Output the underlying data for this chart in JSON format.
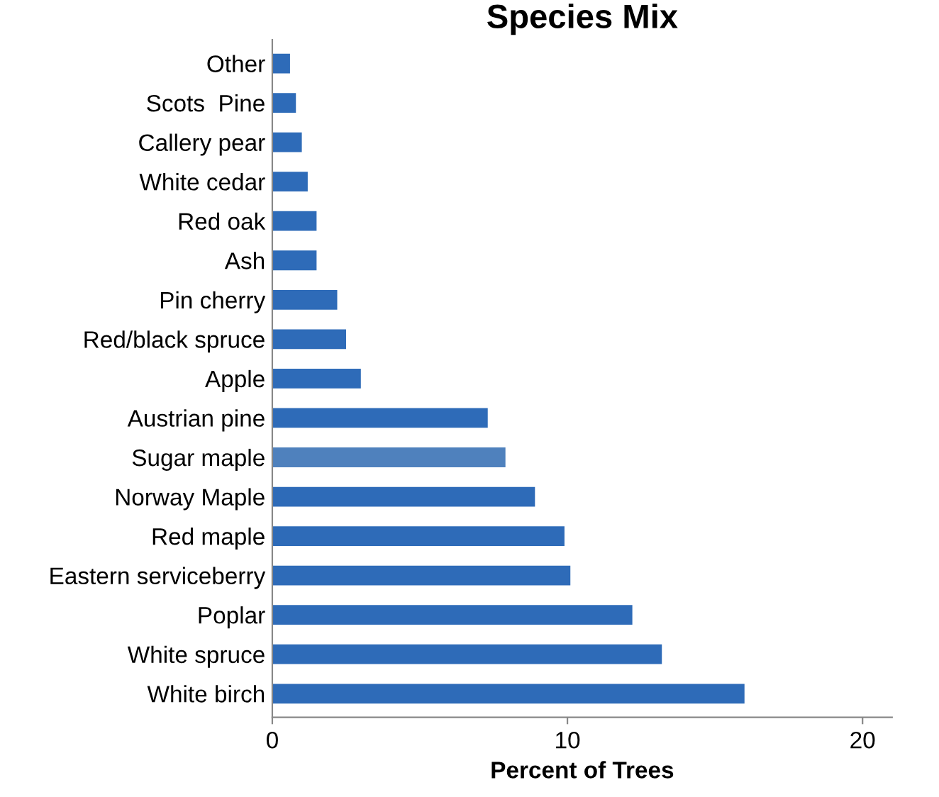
{
  "chart_data": {
    "type": "bar",
    "orientation": "horizontal",
    "title": "Species Mix",
    "xlabel": "Percent of Trees",
    "categories": [
      "Other",
      "Scots  Pine",
      "Callery pear",
      "White cedar",
      "Red oak",
      "Ash",
      "Pin cherry",
      "Red/black spruce",
      "Apple",
      "Austrian pine",
      "Sugar maple",
      "Norway Maple",
      "Red maple",
      "Eastern serviceberry",
      "Poplar",
      "White spruce",
      "White birch"
    ],
    "values": [
      0.6,
      0.8,
      1.0,
      1.2,
      1.5,
      1.5,
      2.2,
      2.5,
      3.0,
      7.3,
      7.9,
      8.9,
      9.9,
      10.1,
      12.2,
      13.2,
      16.0
    ],
    "colors": [
      "#2e6bb8",
      "#2e6bb8",
      "#2e6bb8",
      "#2e6bb8",
      "#2e6bb8",
      "#2e6bb8",
      "#2e6bb8",
      "#2e6bb8",
      "#2e6bb8",
      "#2e6bb8",
      "#4f81bd",
      "#2e6bb8",
      "#2e6bb8",
      "#2e6bb8",
      "#2e6bb8",
      "#2e6bb8",
      "#2e6bb8"
    ],
    "xlim": [
      0,
      21
    ],
    "xticks": [
      0,
      10,
      20
    ],
    "grid": false,
    "legend": false
  }
}
